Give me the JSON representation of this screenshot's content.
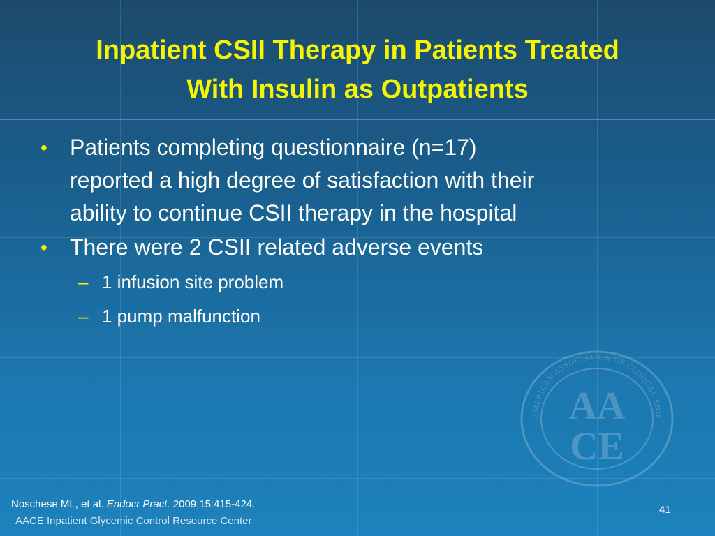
{
  "slide": {
    "title_lines": [
      "Inpatient CSII Therapy in Patients Treated",
      "With Insulin as Outpatients"
    ],
    "bullets": [
      {
        "lines": [
          "Patients completing questionnaire (n=17)",
          "reported a high degree of satisfaction with their",
          "ability to continue CSII therapy in the hospital"
        ]
      },
      {
        "lines": [
          "There were 2 CSII related adverse events"
        ],
        "sub": [
          "1 infusion site problem",
          "1 pump malfunction"
        ]
      }
    ],
    "citation": {
      "authors": "Noschese ML, et al.",
      "journal": "Endocr Pract.",
      "details": "2009;15:415-424."
    },
    "footer": "AACE Inpatient Glycemic Control Resource Center",
    "page_number": "41"
  },
  "seal": {
    "icon": "aace-seal-watermark",
    "ring_text": "AMERICAN ASSOCIATION OF CLINICAL ENDOCRINOLOGISTS",
    "letters_top": "AA",
    "letters_bottom": "CE"
  },
  "colors": {
    "title": "#f5f500",
    "bullet_marker": "#f5f500",
    "text": "#ffffff",
    "background_top": "#1c4a6c",
    "background_bottom": "#1d82bd"
  }
}
